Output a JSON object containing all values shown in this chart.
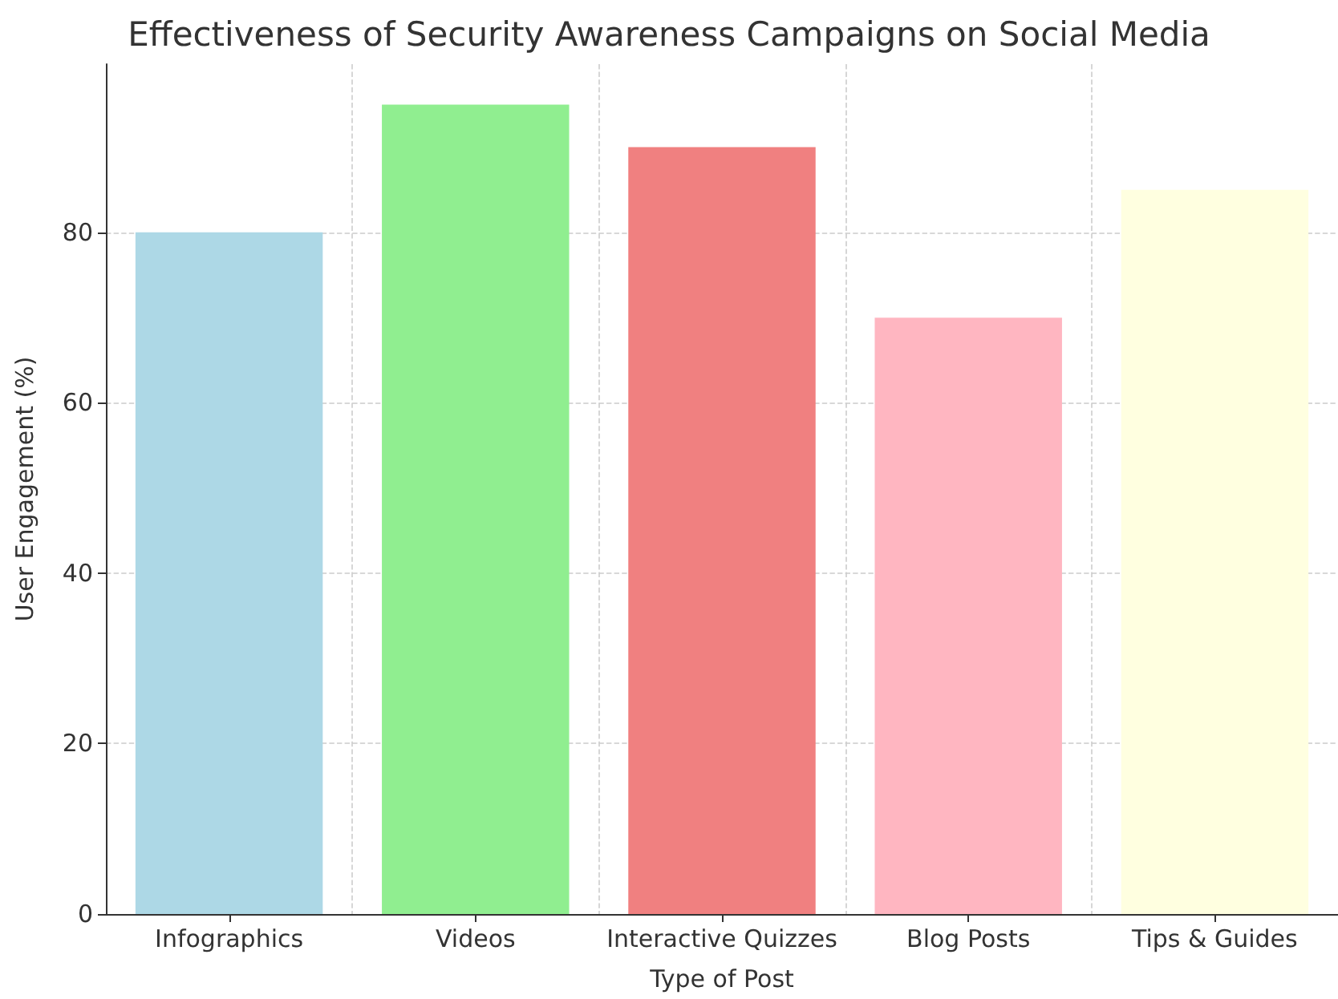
{
  "chart_data": {
    "type": "bar",
    "title": "Effectiveness of Security Awareness Campaigns on Social Media",
    "xlabel": "Type of Post",
    "ylabel": "User Engagement (%)",
    "categories": [
      "Infographics",
      "Videos",
      "Interactive Quizzes",
      "Blog Posts",
      "Tips & Guides"
    ],
    "values": [
      80,
      95,
      90,
      70,
      85
    ],
    "colors": [
      "#add8e6",
      "#90ee90",
      "#f08080",
      "#ffb6c1",
      "#ffffe0"
    ],
    "ylim": [
      0,
      99.75
    ],
    "yticks": [
      0,
      20,
      40,
      60,
      80
    ],
    "grid": true
  }
}
